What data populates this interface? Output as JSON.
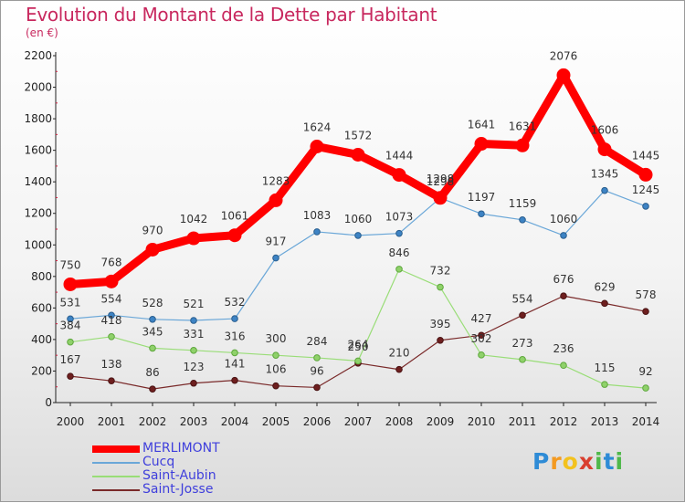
{
  "header": {
    "title": "Evolution du Montant de la Dette par Habitant",
    "subtitle": "(en €)"
  },
  "logo": {
    "text": "Proxiti"
  },
  "chart_data": {
    "type": "line",
    "categories": [
      "2000",
      "2001",
      "2002",
      "2003",
      "2004",
      "2005",
      "2006",
      "2007",
      "2008",
      "2009",
      "2010",
      "2011",
      "2012",
      "2013",
      "2014"
    ],
    "ylim": [
      0,
      2200
    ],
    "yticks": [
      0,
      200,
      400,
      600,
      800,
      1000,
      1200,
      1400,
      1600,
      1800,
      2000,
      2200
    ],
    "grid": false,
    "legend_position": "bottom-left",
    "series": [
      {
        "name": "MERLIMONT",
        "color": "#ff0000",
        "values": [
          750,
          768,
          970,
          1042,
          1061,
          1283,
          1624,
          1572,
          1444,
          1298,
          1641,
          1631,
          2076,
          1606,
          1445
        ]
      },
      {
        "name": "Cucq",
        "color": "#6aa7d8",
        "values": [
          531,
          554,
          528,
          521,
          532,
          917,
          1083,
          1060,
          1073,
          1298,
          1197,
          1159,
          1060,
          1345,
          1245
        ]
      },
      {
        "name": "Saint-Aubin",
        "color": "#99dd77",
        "values": [
          384,
          418,
          345,
          331,
          316,
          300,
          284,
          264,
          846,
          732,
          302,
          273,
          236,
          115,
          92
        ]
      },
      {
        "name": "Saint-Josse",
        "color": "#7a2a2a",
        "values": [
          167,
          138,
          86,
          123,
          141,
          106,
          96,
          250,
          210,
          395,
          427,
          554,
          676,
          629,
          578
        ]
      }
    ]
  }
}
